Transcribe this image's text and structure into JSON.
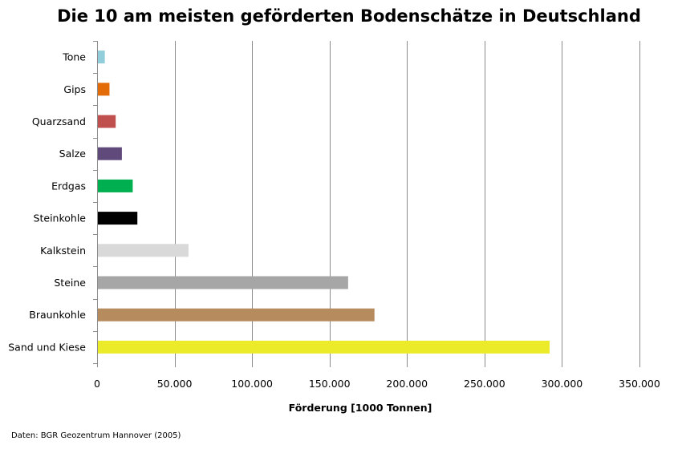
{
  "chart_data": {
    "type": "bar",
    "orientation": "horizontal",
    "title": "Die 10 am meisten geförderten Bodenschätze in Deutschland",
    "xlabel": "Förderung [1000 Tonnen]",
    "ylabel": "",
    "xlim": [
      0,
      350000
    ],
    "xticks": [
      0,
      50000,
      100000,
      150000,
      200000,
      250000,
      300000,
      350000
    ],
    "xtick_labels": [
      "0",
      "50.000",
      "100.000",
      "150.000",
      "200.000",
      "250.000",
      "300.000",
      "350.000"
    ],
    "grid": "vertical",
    "legend": "none",
    "categories": [
      "Tone",
      "Gips",
      "Quarzsand",
      "Salze",
      "Erdgas",
      "Steinkohle",
      "Kalkstein",
      "Steine",
      "Braunkohle",
      "Sand und Kiese"
    ],
    "values": [
      5000,
      8000,
      12000,
      16000,
      23000,
      26000,
      59000,
      162000,
      179000,
      292000
    ],
    "colors": [
      "#92cddc",
      "#e36c09",
      "#c0504d",
      "#604a7b",
      "#00b050",
      "#000000",
      "#d9d9d9",
      "#a6a6a6",
      "#b68b5e",
      "#ebeb2a"
    ]
  },
  "footnote": "Daten: BGR Geozentrum Hannover (2005)"
}
